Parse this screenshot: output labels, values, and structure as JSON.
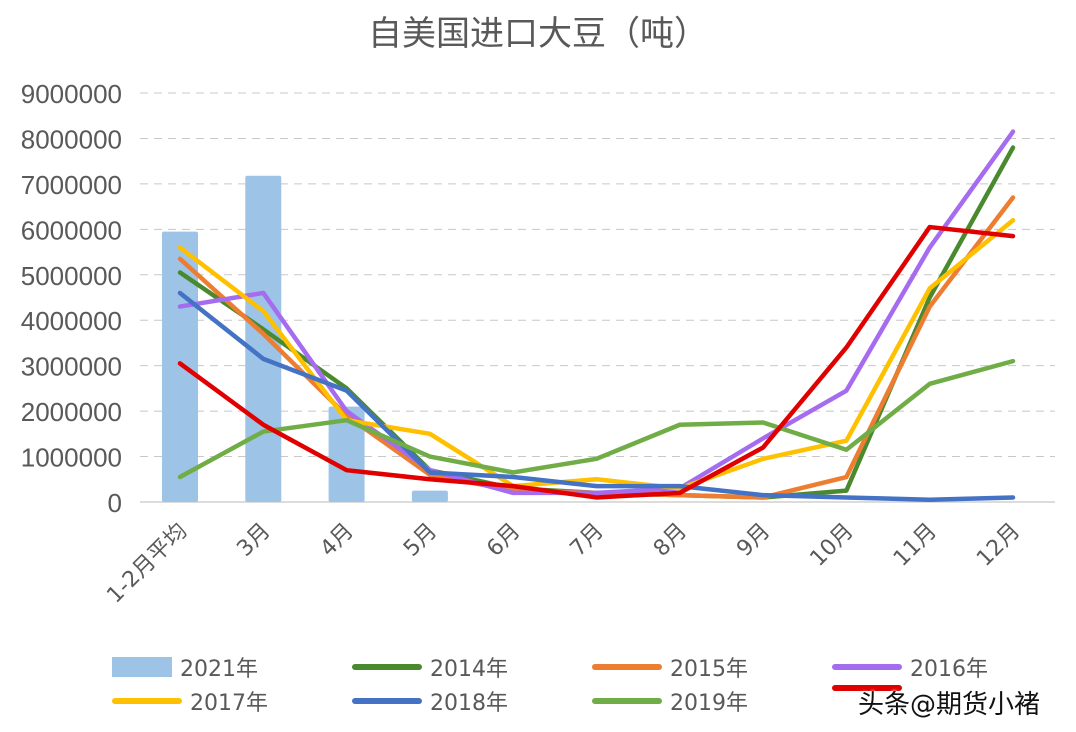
{
  "chart_data": {
    "type": "bar+line",
    "title": "自美国进口大豆（吨）",
    "xlabel": "",
    "ylabel": "",
    "ylim": [
      0,
      9000000
    ],
    "yticks": [
      0,
      1000000,
      2000000,
      3000000,
      4000000,
      5000000,
      6000000,
      7000000,
      8000000,
      9000000
    ],
    "grid": true,
    "legend_position": "bottom",
    "categories": [
      "1-2月平均",
      "3月",
      "4月",
      "5月",
      "6月",
      "7月",
      "8月",
      "9月",
      "10月",
      "11月",
      "12月"
    ],
    "bar_series": {
      "name": "2021年",
      "color": "#9dc3e6",
      "values": [
        5950000,
        7180000,
        2100000,
        250000,
        null,
        null,
        null,
        null,
        null,
        null,
        null
      ]
    },
    "series": [
      {
        "name": "2014年",
        "color": "#4a8a2f",
        "values": [
          5050000,
          3800000,
          2500000,
          700000,
          300000,
          200000,
          150000,
          100000,
          250000,
          4500000,
          7800000
        ]
      },
      {
        "name": "2015年",
        "color": "#ed7d31",
        "values": [
          5350000,
          3700000,
          1900000,
          600000,
          250000,
          200000,
          150000,
          100000,
          550000,
          4300000,
          6700000
        ]
      },
      {
        "name": "2016年",
        "color": "#a66cf0",
        "values": [
          4300000,
          4600000,
          2000000,
          700000,
          200000,
          200000,
          300000,
          1400000,
          2450000,
          5600000,
          8150000
        ]
      },
      {
        "name": "2017年",
        "color": "#ffc000",
        "values": [
          5600000,
          4200000,
          1800000,
          1500000,
          350000,
          500000,
          300000,
          950000,
          1350000,
          4700000,
          6200000
        ]
      },
      {
        "name": "2018年",
        "color": "#4472c4",
        "values": [
          4600000,
          3150000,
          2450000,
          650000,
          550000,
          350000,
          350000,
          150000,
          100000,
          50000,
          100000
        ]
      },
      {
        "name": "2019年",
        "color": "#70ad47",
        "values": [
          550000,
          1550000,
          1800000,
          1000000,
          650000,
          950000,
          1700000,
          1750000,
          1150000,
          2600000,
          3100000
        ]
      },
      {
        "name": "",
        "color": "#e00000",
        "values": [
          3050000,
          1700000,
          700000,
          500000,
          350000,
          100000,
          200000,
          1200000,
          3400000,
          6050000,
          5850000
        ]
      }
    ]
  },
  "watermark": "头条@期货小褚"
}
